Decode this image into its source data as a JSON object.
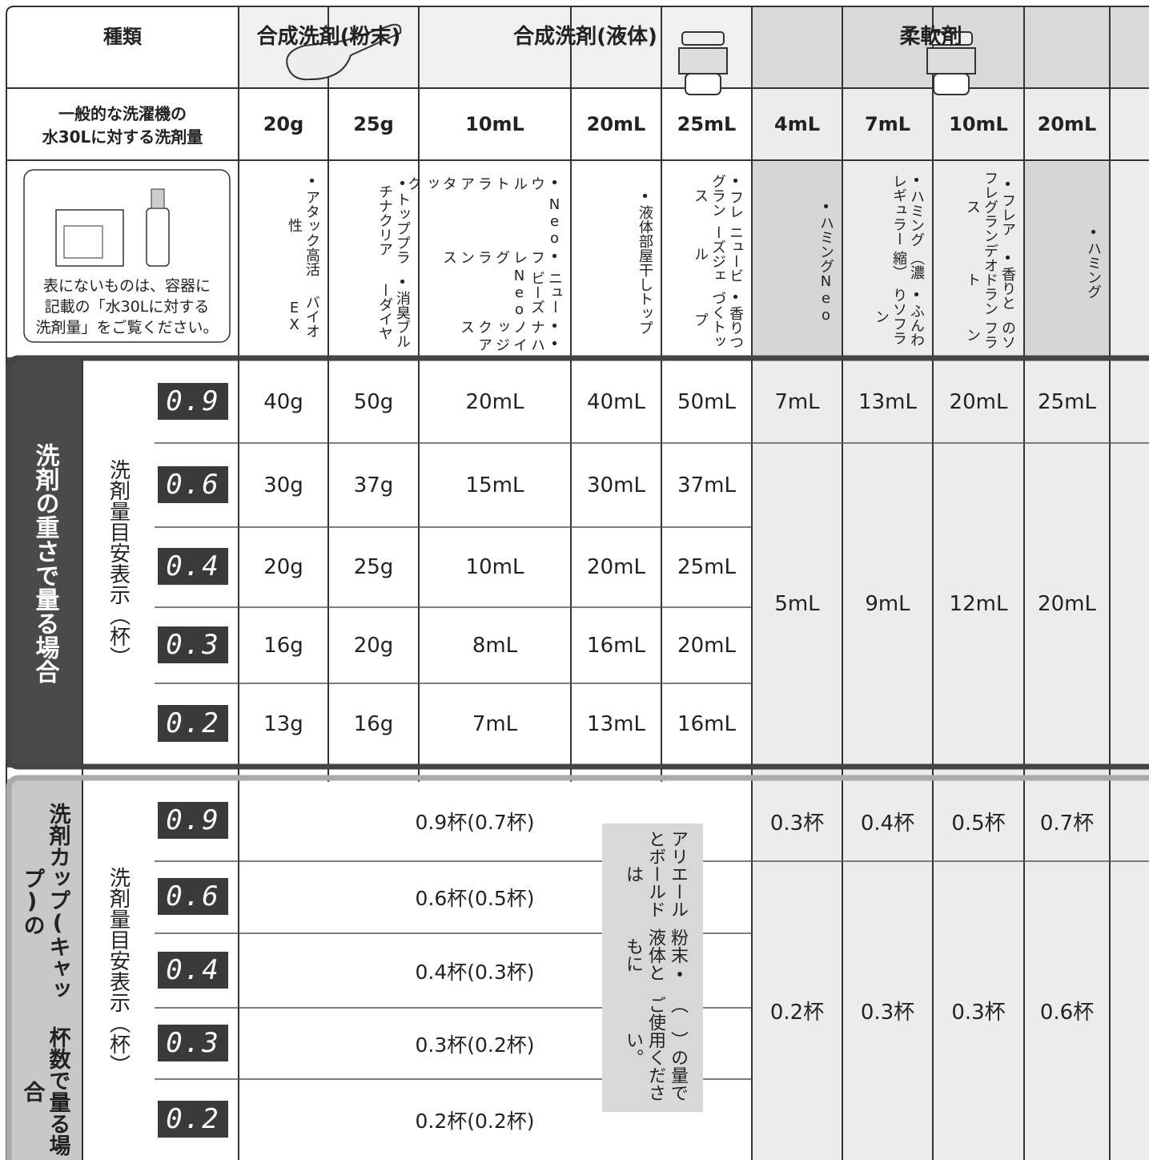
{
  "header": {
    "type_label": "種類",
    "groups": [
      "合成洗剤(粉末)",
      "合成洗剤(液体)",
      "柔軟剤"
    ]
  },
  "standard": {
    "label": [
      "一般的な洗濯機の",
      "水30Lに対する洗剤量"
    ],
    "amounts": [
      "20g",
      "25g",
      "10mL",
      "20mL",
      "25mL",
      "4mL",
      "7mL",
      "10mL",
      "20mL"
    ]
  },
  "products": {
    "note": [
      "表にないものは、容器に",
      "記載の「水30Lに対する",
      "洗剤量」をご覧ください。"
    ],
    "columns": [
      [
        "•アタック高活性",
        "バイオEX"
      ],
      [
        "•トッププラチナクリア",
        "•消臭ブルーダイヤ"
      ],
      [
        "•ウルトラアタック",
        "Neo",
        "•フレグランス",
        "ニュービーズNeo",
        "•ナノックス",
        "•ハイジア"
      ],
      [
        "•液体部屋干しトップ"
      ],
      [
        "•フレグランス",
        "ニュービーズジェル",
        "•香りつづくトップ"
      ],
      [
        "•ハミングNeo"
      ],
      [
        "•ハミングレギュラー",
        "（濃縮）",
        "•ふんわりソフラン"
      ],
      [
        "•フレアフレグランス",
        "•香りとデオドラント",
        "のソフラン"
      ],
      [
        "•ハミング"
      ]
    ]
  },
  "weight_section": {
    "title": "洗剤の重さで量る場合",
    "sublabel": "洗剤量目安表示（杯）",
    "displays": [
      "0.9",
      "0.6",
      "0.4",
      "0.3",
      "0.2"
    ],
    "detergent_rows": [
      [
        "40g",
        "50g",
        "20mL",
        "40mL",
        "50mL"
      ],
      [
        "30g",
        "37g",
        "15mL",
        "30mL",
        "37mL"
      ],
      [
        "20g",
        "25g",
        "10mL",
        "20mL",
        "25mL"
      ],
      [
        "16g",
        "20g",
        "8mL",
        "16mL",
        "20mL"
      ],
      [
        "13g",
        "16g",
        "7mL",
        "13mL",
        "16mL"
      ]
    ],
    "softener_first": [
      "7mL",
      "13mL",
      "20mL",
      "25mL"
    ],
    "softener_rest": [
      "5mL",
      "9mL",
      "12mL",
      "20mL"
    ]
  },
  "cup_section": {
    "title": [
      "洗剤カップ(キャップ)の",
      "杯数で量る場合"
    ],
    "sublabel": "洗剤量目安表示（杯）",
    "displays": [
      "0.9",
      "0.6",
      "0.4",
      "0.3",
      "0.2"
    ],
    "detergent_rows": [
      "0.9杯(0.7杯)",
      "0.6杯(0.5杯)",
      "0.4杯(0.3杯)",
      "0.3杯(0.2杯)",
      "0.2杯(0.2杯)"
    ],
    "note": [
      "アリエールとボールドは",
      "粉末・液体ともに",
      "（　）の量でご使用ください。"
    ],
    "softener_first": [
      "0.3杯",
      "0.4杯",
      "0.5杯",
      "0.7杯"
    ],
    "softener_rest": [
      "0.2杯",
      "0.3杯",
      "0.3杯",
      "0.6杯"
    ]
  }
}
